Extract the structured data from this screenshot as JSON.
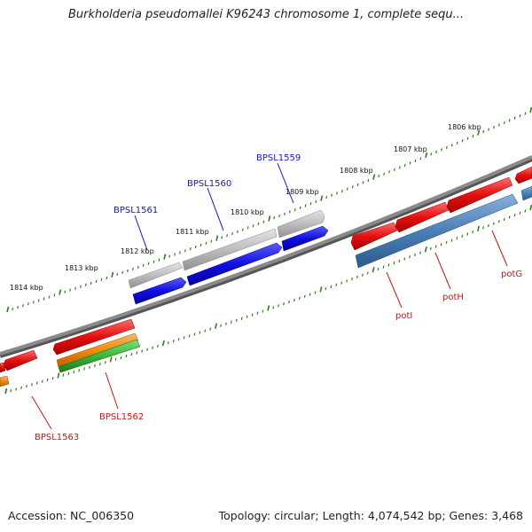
{
  "title": "Burkholderia pseudomallei K96243 chromosome 1, complete sequ...",
  "footer": {
    "accession": "Accession: NC_006350",
    "summary": "Topology: circular; Length: 4,074,542 bp; Genes: 3,468"
  },
  "kbp_labels": [
    "1806 kbp",
    "1807 kbp",
    "1808 kbp",
    "1809 kbp",
    "1810 kbp",
    "1811 kbp",
    "1812 kbp",
    "1813 kbp",
    "1814 kbp"
  ],
  "gene_labels": {
    "forward": [
      "BPSL1559",
      "BPSL1560",
      "BPSL1561"
    ],
    "reverse": [
      "potG",
      "potH",
      "potI",
      "BPSL1562",
      "BPSL1563"
    ]
  },
  "colors": {
    "backbone": "#7a7a7a",
    "tick": "#2e7d1e",
    "forward_label": "#1515c8",
    "reverse_label": "#c81515",
    "gene_blue": "#1010e0",
    "gene_gray": "#b8b8b8",
    "gene_red": "#e41010",
    "gene_steel": "#4a80b8",
    "gene_orange": "#f08a10",
    "gene_green": "#38b838"
  }
}
